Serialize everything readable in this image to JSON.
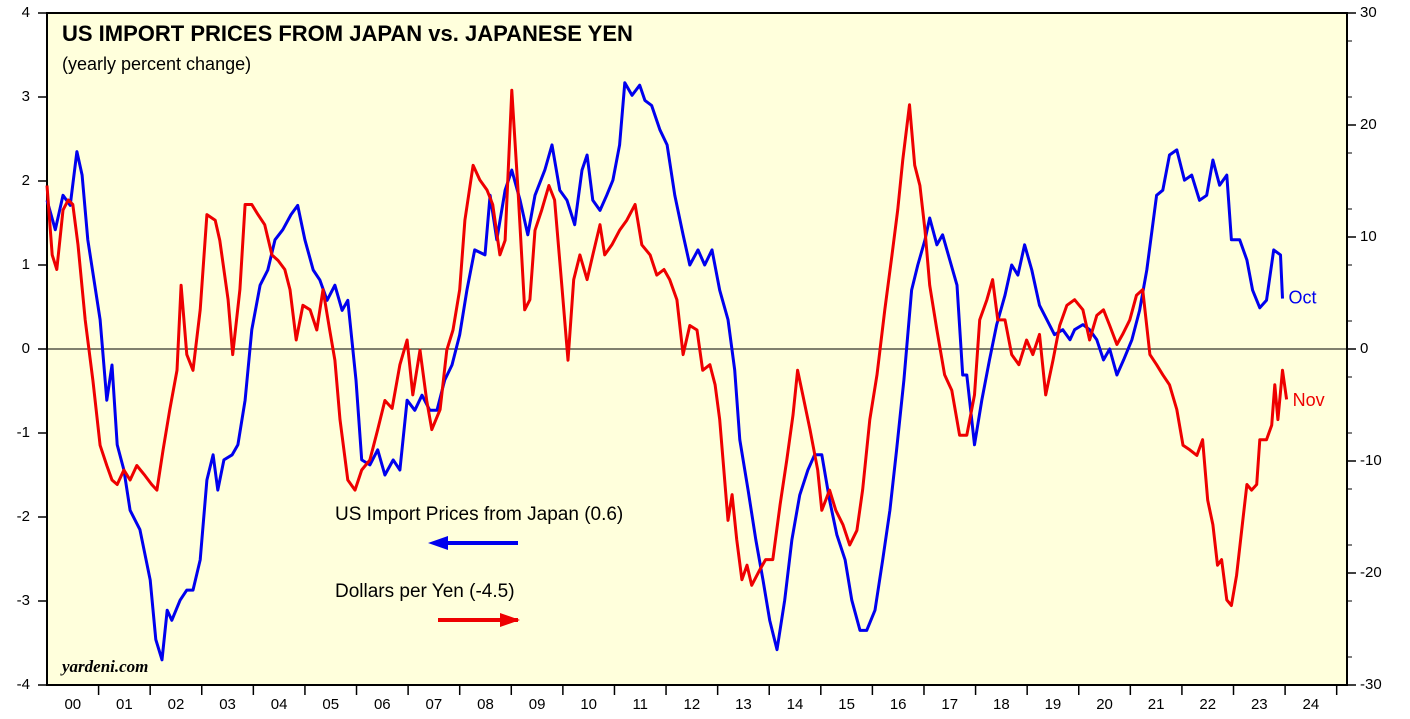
{
  "chart_data": {
    "type": "line",
    "title": "US IMPORT PRICES FROM JAPAN vs. JAPANESE YEN",
    "subtitle": "(yearly percent change)",
    "source": "yardeni.com",
    "xlim": [
      2000,
      2025.2
    ],
    "xticks": [
      {
        "value": 2000.5,
        "label": "00"
      },
      {
        "value": 2001.5,
        "label": "01"
      },
      {
        "value": 2002.5,
        "label": "02"
      },
      {
        "value": 2003.5,
        "label": "03"
      },
      {
        "value": 2004.5,
        "label": "04"
      },
      {
        "value": 2005.5,
        "label": "05"
      },
      {
        "value": 2006.5,
        "label": "06"
      },
      {
        "value": 2007.5,
        "label": "07"
      },
      {
        "value": 2008.5,
        "label": "08"
      },
      {
        "value": 2009.5,
        "label": "09"
      },
      {
        "value": 2010.5,
        "label": "10"
      },
      {
        "value": 2011.5,
        "label": "11"
      },
      {
        "value": 2012.5,
        "label": "12"
      },
      {
        "value": 2013.5,
        "label": "13"
      },
      {
        "value": 2014.5,
        "label": "14"
      },
      {
        "value": 2015.5,
        "label": "15"
      },
      {
        "value": 2016.5,
        "label": "16"
      },
      {
        "value": 2017.5,
        "label": "17"
      },
      {
        "value": 2018.5,
        "label": "18"
      },
      {
        "value": 2019.5,
        "label": "19"
      },
      {
        "value": 2020.5,
        "label": "20"
      },
      {
        "value": 2021.5,
        "label": "21"
      },
      {
        "value": 2022.5,
        "label": "22"
      },
      {
        "value": 2023.5,
        "label": "23"
      },
      {
        "value": 2024.5,
        "label": "24"
      }
    ],
    "ylim": [
      -4,
      4
    ],
    "yticks": [
      -4,
      -3,
      -2,
      -1,
      0,
      1,
      2,
      3,
      4
    ],
    "y2lim": [
      -30,
      30
    ],
    "y2ticks": [
      -30,
      -20,
      -10,
      0,
      10,
      20,
      30
    ],
    "series": [
      {
        "name": "US Import Prices from Japan (0.6)",
        "color": "#0000ee",
        "axis": "y",
        "end_label": "Oct",
        "x": [
          2000.0,
          2000.16,
          2000.31,
          2000.45,
          2000.58,
          2000.68,
          2000.79,
          2001.03,
          2001.16,
          2001.26,
          2001.36,
          2001.49,
          2001.61,
          2001.8,
          2002.0,
          2002.11,
          2002.23,
          2002.33,
          2002.42,
          2002.58,
          2002.71,
          2002.83,
          2002.97,
          2003.1,
          2003.22,
          2003.31,
          2003.43,
          2003.59,
          2003.7,
          2003.84,
          2003.97,
          2004.13,
          2004.28,
          2004.42,
          2004.57,
          2004.73,
          2004.86,
          2005.0,
          2005.16,
          2005.29,
          2005.43,
          2005.58,
          2005.72,
          2005.83,
          2005.99,
          2006.1,
          2006.26,
          2006.41,
          2006.55,
          2006.71,
          2006.84,
          2006.98,
          2007.13,
          2007.27,
          2007.42,
          2007.56,
          2007.71,
          2007.85,
          2008.0,
          2008.14,
          2008.29,
          2008.49,
          2008.59,
          2008.72,
          2008.88,
          2009.01,
          2009.17,
          2009.32,
          2009.46,
          2009.65,
          2009.79,
          2009.94,
          2010.08,
          2010.23,
          2010.37,
          2010.47,
          2010.58,
          2010.72,
          2010.85,
          2010.97,
          2011.1,
          2011.2,
          2011.34,
          2011.49,
          2011.59,
          2011.72,
          2011.88,
          2012.02,
          2012.17,
          2012.33,
          2012.46,
          2012.62,
          2012.75,
          2012.89,
          2013.04,
          2013.2,
          2013.33,
          2013.43,
          2013.59,
          2013.74,
          2013.88,
          2014.01,
          2014.15,
          2014.3,
          2014.44,
          2014.59,
          2014.75,
          2014.88,
          2015.02,
          2015.17,
          2015.31,
          2015.47,
          2015.6,
          2015.76,
          2015.89,
          2016.05,
          2016.2,
          2016.34,
          2016.47,
          2016.61,
          2016.76,
          2016.88,
          2017.02,
          2017.11,
          2017.25,
          2017.36,
          2017.5,
          2017.64,
          2017.75,
          2017.83,
          2017.98,
          2018.12,
          2018.27,
          2018.41,
          2018.57,
          2018.7,
          2018.82,
          2018.95,
          2019.09,
          2019.24,
          2019.38,
          2019.53,
          2019.69,
          2019.83,
          2019.92,
          2020.08,
          2020.21,
          2020.35,
          2020.48,
          2020.6,
          2020.74,
          2020.87,
          2021.03,
          2021.18,
          2021.32,
          2021.51,
          2021.63,
          2021.76,
          2021.9,
          2022.05,
          2022.19,
          2022.34,
          2022.48,
          2022.6,
          2022.73,
          2022.87,
          2022.96,
          2023.12,
          2023.26,
          2023.37,
          2023.51,
          2023.64,
          2023.78,
          2023.91,
          2023.95
        ],
        "values": [
          1.77,
          1.42,
          1.83,
          1.71,
          2.35,
          2.07,
          1.3,
          0.35,
          -0.61,
          -0.19,
          -1.14,
          -1.44,
          -1.92,
          -2.15,
          -2.75,
          -3.46,
          -3.7,
          -3.11,
          -3.23,
          -2.99,
          -2.87,
          -2.87,
          -2.51,
          -1.56,
          -1.26,
          -1.68,
          -1.32,
          -1.26,
          -1.14,
          -0.61,
          0.23,
          0.76,
          0.94,
          1.3,
          1.42,
          1.6,
          1.71,
          1.3,
          0.94,
          0.82,
          0.58,
          0.76,
          0.46,
          0.58,
          -0.37,
          -1.32,
          -1.38,
          -1.2,
          -1.5,
          -1.32,
          -1.44,
          -0.61,
          -0.73,
          -0.55,
          -0.73,
          -0.73,
          -0.37,
          -0.19,
          0.17,
          0.7,
          1.18,
          1.12,
          1.83,
          1.3,
          1.89,
          2.13,
          1.77,
          1.36,
          1.83,
          2.13,
          2.43,
          1.89,
          1.77,
          1.48,
          2.13,
          2.31,
          1.77,
          1.65,
          1.83,
          2.01,
          2.43,
          3.17,
          3.02,
          3.14,
          2.96,
          2.9,
          2.61,
          2.43,
          1.83,
          1.36,
          1.0,
          1.18,
          1.0,
          1.18,
          0.7,
          0.35,
          -0.25,
          -1.08,
          -1.68,
          -2.27,
          -2.75,
          -3.23,
          -3.58,
          -2.99,
          -2.27,
          -1.74,
          -1.44,
          -1.26,
          -1.26,
          -1.8,
          -2.21,
          -2.51,
          -2.99,
          -3.35,
          -3.35,
          -3.11,
          -2.51,
          -1.92,
          -1.2,
          -0.37,
          0.7,
          1.0,
          1.3,
          1.56,
          1.24,
          1.36,
          1.06,
          0.76,
          -0.31,
          -0.31,
          -1.14,
          -0.61,
          -0.13,
          0.29,
          0.64,
          1.0,
          0.88,
          1.24,
          0.94,
          0.52,
          0.35,
          0.17,
          0.23,
          0.11,
          0.23,
          0.29,
          0.23,
          0.11,
          -0.13,
          0,
          -0.31,
          -0.13,
          0.11,
          0.46,
          0.94,
          1.83,
          1.89,
          2.31,
          2.37,
          2.01,
          2.07,
          1.77,
          1.83,
          2.25,
          1.95,
          2.07,
          1.3,
          1.3,
          1.06,
          0.7,
          0.49,
          0.58,
          1.18,
          1.12,
          0.6
        ]
      },
      {
        "name": "Dollars per Yen (-4.5)",
        "color": "#ee0000",
        "axis": "y2",
        "end_label": "Nov",
        "x": [
          2000.0,
          2000.1,
          2000.19,
          2000.31,
          2000.41,
          2000.5,
          2000.6,
          2000.74,
          2000.89,
          2001.03,
          2001.16,
          2001.26,
          2001.36,
          2001.49,
          2001.61,
          2001.74,
          2001.9,
          2002.03,
          2002.13,
          2002.25,
          2002.38,
          2002.52,
          2002.6,
          2002.71,
          2002.83,
          2002.97,
          2003.1,
          2003.26,
          2003.35,
          2003.51,
          2003.6,
          2003.74,
          2003.84,
          2003.97,
          2004.09,
          2004.22,
          2004.36,
          2004.48,
          2004.61,
          2004.71,
          2004.83,
          2004.96,
          2005.1,
          2005.23,
          2005.35,
          2005.48,
          2005.58,
          2005.68,
          2005.83,
          2005.97,
          2006.1,
          2006.26,
          2006.41,
          2006.55,
          2006.69,
          2006.84,
          2006.98,
          2007.09,
          2007.23,
          2007.36,
          2007.46,
          2007.62,
          2007.75,
          2007.87,
          2008.0,
          2008.1,
          2008.26,
          2008.39,
          2008.53,
          2008.64,
          2008.78,
          2008.88,
          2009.01,
          2009.13,
          2009.26,
          2009.36,
          2009.46,
          2009.59,
          2009.73,
          2009.84,
          2009.98,
          2010.1,
          2010.21,
          2010.33,
          2010.47,
          2010.58,
          2010.72,
          2010.81,
          2010.95,
          2011.1,
          2011.24,
          2011.4,
          2011.53,
          2011.69,
          2011.82,
          2011.96,
          2012.07,
          2012.21,
          2012.33,
          2012.46,
          2012.6,
          2012.71,
          2012.85,
          2012.95,
          2013.04,
          2013.2,
          2013.28,
          2013.37,
          2013.47,
          2013.57,
          2013.66,
          2013.82,
          2013.93,
          2014.07,
          2014.21,
          2014.34,
          2014.46,
          2014.55,
          2014.65,
          2014.79,
          2014.94,
          2015.02,
          2015.17,
          2015.29,
          2015.43,
          2015.56,
          2015.7,
          2015.81,
          2015.95,
          2016.09,
          2016.24,
          2016.38,
          2016.49,
          2016.59,
          2016.72,
          2016.82,
          2016.92,
          2017.02,
          2017.11,
          2017.25,
          2017.4,
          2017.54,
          2017.69,
          2017.83,
          2017.98,
          2018.08,
          2018.22,
          2018.33,
          2018.43,
          2018.57,
          2018.7,
          2018.84,
          2018.99,
          2019.11,
          2019.24,
          2019.36,
          2019.5,
          2019.63,
          2019.77,
          2019.92,
          2020.08,
          2020.21,
          2020.35,
          2020.48,
          2020.6,
          2020.74,
          2020.85,
          2020.99,
          2021.12,
          2021.24,
          2021.38,
          2021.51,
          2021.63,
          2021.76,
          2021.9,
          2022.02,
          2022.15,
          2022.29,
          2022.4,
          2022.5,
          2022.6,
          2022.69,
          2022.77,
          2022.87,
          2022.96,
          2023.06,
          2023.18,
          2023.26,
          2023.35,
          2023.45,
          2023.51,
          2023.64,
          2023.74,
          2023.8,
          2023.86,
          2023.95,
          2024.03
        ],
        "values": [
          14.6,
          8.4,
          7.1,
          12.4,
          13.3,
          12.9,
          9.3,
          2.6,
          -2.8,
          -8.6,
          -10.4,
          -11.7,
          -12.1,
          -10.8,
          -11.7,
          -10.4,
          -11.3,
          -12.1,
          -12.6,
          -9.0,
          -5.4,
          -1.9,
          5.7,
          -0.5,
          -1.9,
          3.5,
          12.0,
          11.5,
          9.7,
          4.4,
          -0.5,
          5.3,
          12.9,
          12.9,
          12.0,
          11.1,
          8.4,
          7.9,
          7.1,
          5.3,
          0.8,
          3.9,
          3.5,
          1.7,
          5.3,
          1.7,
          -1.0,
          -6.3,
          -11.7,
          -12.6,
          -10.8,
          -9.9,
          -7.2,
          -4.6,
          -5.3,
          -1.4,
          0.8,
          -4.1,
          -0.1,
          -4.6,
          -7.2,
          -5.4,
          -0.1,
          1.7,
          5.3,
          11.5,
          16.4,
          15.1,
          14.2,
          12.9,
          8.4,
          9.7,
          23.1,
          14.2,
          3.5,
          4.4,
          10.6,
          12.4,
          14.6,
          13.3,
          5.7,
          -1.0,
          6.2,
          8.4,
          6.2,
          8.4,
          11.1,
          8.4,
          9.3,
          10.6,
          11.5,
          12.9,
          9.3,
          8.4,
          6.6,
          7.1,
          6.2,
          4.4,
          -0.5,
          2.1,
          1.7,
          -1.9,
          -1.4,
          -3.2,
          -6.3,
          -15.3,
          -13.0,
          -17.0,
          -20.6,
          -19.3,
          -21.1,
          -19.7,
          -18.8,
          -18.8,
          -13.9,
          -9.9,
          -5.9,
          -1.9,
          -4.1,
          -7.2,
          -10.8,
          -14.4,
          -12.6,
          -14.4,
          -15.7,
          -17.5,
          -16.2,
          -12.6,
          -6.3,
          -2.3,
          3.5,
          8.4,
          12.4,
          16.9,
          21.8,
          16.4,
          14.6,
          10.6,
          5.7,
          1.7,
          -2.3,
          -3.7,
          -7.7,
          -7.7,
          -4.1,
          2.6,
          4.4,
          6.2,
          2.6,
          2.6,
          -0.5,
          -1.4,
          0.8,
          -0.5,
          1.3,
          -4.1,
          -1.0,
          2.1,
          3.9,
          4.4,
          3.5,
          0.8,
          3.0,
          3.5,
          2.1,
          0.4,
          1.3,
          2.6,
          4.8,
          5.3,
          -0.5,
          -1.4,
          -2.3,
          -3.2,
          -5.4,
          -8.6,
          -9.0,
          -9.5,
          -8.1,
          -13.5,
          -15.7,
          -19.3,
          -18.8,
          -22.4,
          -22.9,
          -20.2,
          -15.3,
          -12.1,
          -12.6,
          -12.1,
          -8.1,
          -8.1,
          -6.8,
          -3.2,
          -6.3,
          -1.9,
          -4.5
        ]
      }
    ]
  }
}
